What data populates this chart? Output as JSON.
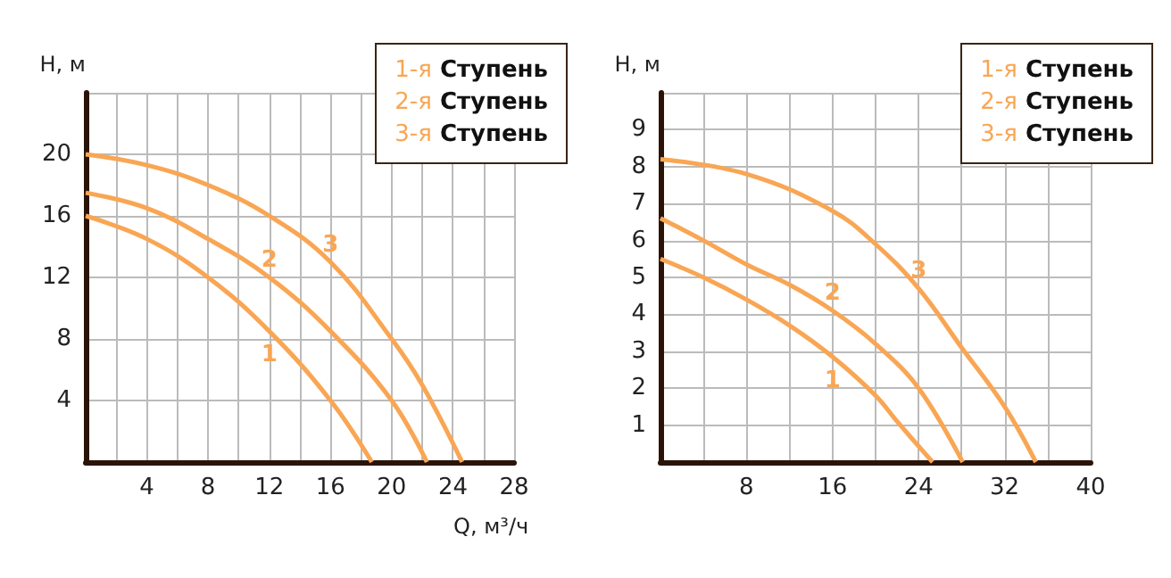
{
  "chart_data": [
    {
      "type": "line",
      "xlabel": "Q, м³/ч",
      "ylabel": "H, м",
      "xlim": [
        0,
        28
      ],
      "ylim": [
        0,
        24
      ],
      "xticks": [
        {
          "value": 0,
          "label": null
        },
        {
          "value": 2,
          "label": null
        },
        4,
        {
          "value": 6,
          "label": null
        },
        8,
        {
          "value": 10,
          "label": null
        },
        12,
        {
          "value": 14,
          "label": null
        },
        16,
        {
          "value": 18,
          "label": null
        },
        20,
        {
          "value": 22,
          "label": null
        },
        24,
        {
          "value": 26,
          "label": null
        },
        28
      ],
      "yticks": [
        {
          "value": 0,
          "label": null
        },
        4,
        8,
        12,
        16,
        20,
        {
          "value": 24,
          "label": null
        }
      ],
      "grid": true,
      "marker": "none",
      "annotations": [
        "1-я Ступень",
        "2-я Ступень",
        "3-я Ступень"
      ],
      "series": [
        {
          "name": "1",
          "color": "#f9a654",
          "x": [
            0,
            4,
            8,
            12,
            16,
            18.7
          ],
          "values": [
            16,
            14.5,
            12,
            8.5,
            4,
            0
          ]
        },
        {
          "name": "2",
          "color": "#f9a654",
          "x": [
            0,
            4,
            8,
            12,
            16,
            20,
            22.3
          ],
          "values": [
            17.5,
            16.5,
            14.5,
            12,
            8.5,
            4,
            0
          ]
        },
        {
          "name": "3",
          "color": "#f9a654",
          "x": [
            0,
            4,
            8,
            12,
            16,
            20,
            22,
            24.6
          ],
          "values": [
            20,
            19.3,
            18,
            16,
            13,
            8,
            5,
            0
          ]
        }
      ]
    },
    {
      "type": "line",
      "ylabel": "H, м",
      "xlim": [
        0,
        40
      ],
      "ylim": [
        0,
        10
      ],
      "xticks": [
        {
          "value": 0,
          "label": null
        },
        {
          "value": 4,
          "label": null
        },
        8,
        {
          "value": 12,
          "label": null
        },
        16,
        {
          "value": 20,
          "label": null
        },
        24,
        {
          "value": 28,
          "label": null
        },
        32,
        {
          "value": 36,
          "label": null
        },
        40
      ],
      "yticks": [
        {
          "value": 0,
          "label": null
        },
        1,
        2,
        3,
        4,
        5,
        6,
        7,
        8,
        9,
        {
          "value": 10,
          "label": null
        }
      ],
      "grid": true,
      "marker": "none",
      "annotations": [
        "1-я Ступень",
        "2-я Ступень",
        "3-я Ступень"
      ],
      "series": [
        {
          "name": "1",
          "color": "#f9a654",
          "x": [
            0,
            4,
            8,
            12,
            16,
            20,
            22,
            25.3
          ],
          "values": [
            5.5,
            5.0,
            4.4,
            3.7,
            2.85,
            1.8,
            1.1,
            0
          ]
        },
        {
          "name": "2",
          "color": "#f9a654",
          "x": [
            0,
            4,
            8,
            12,
            16,
            20,
            24,
            28.1
          ],
          "values": [
            6.6,
            6.0,
            5.35,
            4.8,
            4.1,
            3.2,
            2.0,
            0
          ]
        },
        {
          "name": "3",
          "color": "#f9a654",
          "x": [
            0,
            8,
            16,
            20,
            24,
            28,
            32,
            34.9
          ],
          "values": [
            8.2,
            7.8,
            6.8,
            5.9,
            4.7,
            3.1,
            1.5,
            0
          ]
        }
      ]
    }
  ]
}
